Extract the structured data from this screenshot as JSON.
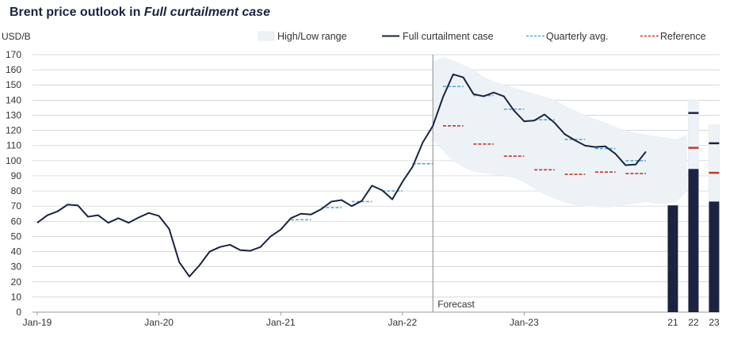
{
  "chart_data": {
    "type": "line",
    "title": "Brent price outlook in ",
    "title_emphasis": "Full curtailment case",
    "ylabel": "USD/B",
    "ylim": [
      0,
      170
    ],
    "yticks": [
      0,
      10,
      20,
      30,
      40,
      50,
      60,
      70,
      80,
      90,
      100,
      110,
      120,
      130,
      140,
      150,
      160,
      170
    ],
    "x_start": "Jan-19",
    "x_ticks": [
      {
        "label": "Jan-19",
        "month": 0
      },
      {
        "label": "Jan-20",
        "month": 12
      },
      {
        "label": "Jan-21",
        "month": 24
      },
      {
        "label": "Jan-22",
        "month": 36
      },
      {
        "label": "Jan-23",
        "month": 48
      }
    ],
    "forecast_start_month": 39,
    "forecast_label": "Forecast",
    "legend": {
      "range": "High/Low range",
      "main": "Full curtailment case",
      "quarterly": "Quarterly avg.",
      "reference": "Reference"
    },
    "colors": {
      "main": "#1b2340",
      "range": "#edf2f7",
      "quarterly": "#5aaad8",
      "reference": "#c0392b",
      "grid": "#cccccc",
      "axis": "#999999"
    },
    "series": [
      {
        "name": "Full curtailment case",
        "start_month": 0,
        "values": [
          59,
          64,
          66.5,
          71,
          70.5,
          63,
          64,
          59,
          62,
          59,
          62.5,
          65.5,
          63.5,
          55,
          33,
          23.5,
          31,
          40,
          43,
          44.5,
          41,
          40.5,
          43,
          50,
          54.5,
          62,
          65,
          64.5,
          68,
          73,
          74,
          70,
          73.5,
          83.5,
          80.5,
          74.5,
          86,
          96,
          112,
          123,
          142,
          157,
          155,
          144,
          142.5,
          145,
          142.5,
          133,
          126,
          126.5,
          130.5,
          125,
          117.5,
          113.5,
          110,
          109,
          109.5,
          104.5,
          97,
          97.5,
          106
        ]
      },
      {
        "name": "High",
        "start_month": 39,
        "values": [
          165,
          168,
          166,
          163,
          160,
          155,
          152,
          150,
          148,
          146,
          144,
          142,
          140,
          136,
          133,
          130,
          127,
          125,
          122,
          120,
          118,
          117,
          116,
          115,
          114,
          117
        ]
      },
      {
        "name": "Low",
        "start_month": 39,
        "values": [
          114,
          107,
          100,
          96,
          93,
          92,
          91,
          90,
          89,
          86,
          82,
          78,
          75,
          73,
          71,
          70,
          70,
          69,
          70,
          71,
          72,
          73,
          72,
          72,
          73,
          80
        ]
      }
    ],
    "quarterly_avg": [
      {
        "start": 25,
        "end": 27,
        "value": 61
      },
      {
        "start": 28,
        "end": 30,
        "value": 69
      },
      {
        "start": 31,
        "end": 33,
        "value": 73
      },
      {
        "start": 34,
        "end": 36,
        "value": 80
      },
      {
        "start": 37,
        "end": 39,
        "value": 98
      },
      {
        "start": 40,
        "end": 42,
        "value": 149
      },
      {
        "start": 43,
        "end": 45,
        "value": 143
      },
      {
        "start": 46,
        "end": 48,
        "value": 134
      },
      {
        "start": 49,
        "end": 51,
        "value": 127
      },
      {
        "start": 52,
        "end": 54,
        "value": 114
      },
      {
        "start": 55,
        "end": 57,
        "value": 108
      },
      {
        "start": 58,
        "end": 60,
        "value": 100
      }
    ],
    "reference": [
      {
        "start": 37,
        "end": 39,
        "value": 98
      },
      {
        "start": 40,
        "end": 42,
        "value": 123
      },
      {
        "start": 43,
        "end": 45,
        "value": 111
      },
      {
        "start": 46,
        "end": 48,
        "value": 103
      },
      {
        "start": 49,
        "end": 51,
        "value": 94
      },
      {
        "start": 52,
        "end": 54,
        "value": 91
      },
      {
        "start": 55,
        "end": 57,
        "value": 92.5
      },
      {
        "start": 58,
        "end": 60,
        "value": 91.5
      }
    ],
    "annual_bars": [
      {
        "label": "21",
        "value": 70.5,
        "high": null,
        "reference": null
      },
      {
        "label": "22",
        "value": 94.5,
        "high": 140,
        "main_case": 131.5,
        "reference": 108.5
      },
      {
        "label": "23",
        "value": 73,
        "high": 123.5,
        "main_case": 111.5,
        "reference": 92
      }
    ]
  }
}
